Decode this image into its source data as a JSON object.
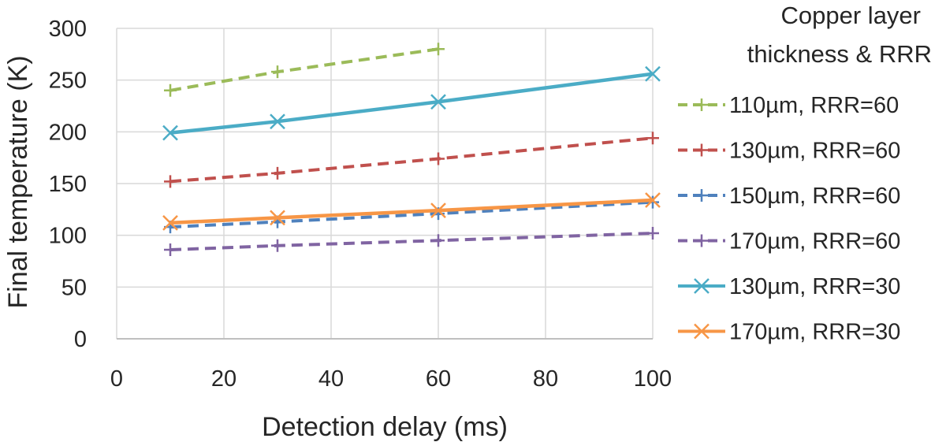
{
  "chart_data": {
    "type": "line",
    "title": "",
    "xlabel": "Detection delay (ms)",
    "ylabel": "Final temperature (K)",
    "xlim": [
      0,
      100
    ],
    "ylim": [
      0,
      300
    ],
    "xticks": [
      "0",
      "20",
      "40",
      "60",
      "80",
      "100"
    ],
    "yticks": [
      "0",
      "50",
      "100",
      "150",
      "200",
      "250",
      "300"
    ],
    "grid": "vertical and horizontal major gridlines",
    "legend": {
      "title_lines": [
        "Copper layer",
        "thickness & RRR"
      ],
      "placement": "right"
    },
    "series": [
      {
        "name": "110µm, RRR=60",
        "color": "#9BBB59",
        "dash": "dashed",
        "marker": "plus",
        "x": [
          10,
          30,
          60
        ],
        "y": [
          240,
          258,
          280
        ]
      },
      {
        "name": "130µm, RRR=60",
        "color": "#C0504D",
        "dash": "dashed",
        "marker": "plus",
        "x": [
          10,
          30,
          60,
          100
        ],
        "y": [
          152,
          160,
          174,
          194
        ]
      },
      {
        "name": "150µm, RRR=60",
        "color": "#4F81BD",
        "dash": "dashed",
        "marker": "plus",
        "x": [
          10,
          30,
          60,
          100
        ],
        "y": [
          108,
          113,
          121,
          132
        ]
      },
      {
        "name": "170µm, RRR=60",
        "color": "#8064A2",
        "dash": "dashed",
        "marker": "plus",
        "x": [
          10,
          30,
          60,
          100
        ],
        "y": [
          86,
          90,
          95,
          102
        ]
      },
      {
        "name": "130µm, RRR=30",
        "color": "#4BACC6",
        "dash": "solid",
        "marker": "x",
        "x": [
          10,
          30,
          60,
          100
        ],
        "y": [
          199,
          210,
          229,
          256
        ]
      },
      {
        "name": "170µm, RRR=30",
        "color": "#F79646",
        "dash": "solid",
        "marker": "x",
        "x": [
          10,
          30,
          60,
          100
        ],
        "y": [
          112,
          117,
          124,
          134
        ]
      }
    ]
  }
}
